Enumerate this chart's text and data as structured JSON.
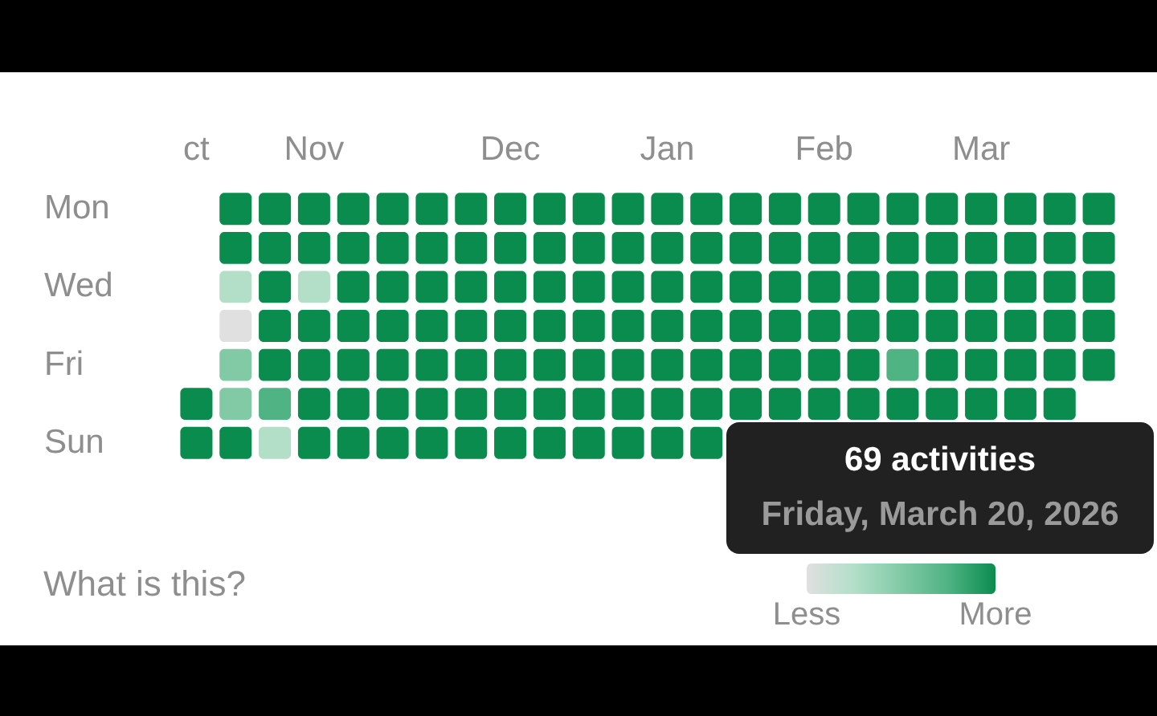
{
  "chart_data": {
    "type": "heatmap",
    "categories": [
      "ct",
      null,
      null,
      "Nov",
      null,
      null,
      null,
      null,
      "Dec",
      null,
      null,
      null,
      "Jan",
      null,
      null,
      null,
      "Feb",
      null,
      null,
      null,
      "Mar",
      null,
      null,
      null
    ],
    "y_categories": [
      "Mon",
      null,
      "Wed",
      null,
      "Fri",
      null,
      "Sun"
    ],
    "cells": [
      [
        null,
        4,
        4,
        4,
        4,
        4,
        4,
        4,
        4,
        4,
        4,
        4,
        4,
        4,
        4,
        4,
        4,
        4,
        4,
        4,
        4,
        4,
        4,
        4
      ],
      [
        null,
        4,
        4,
        4,
        4,
        4,
        4,
        4,
        4,
        4,
        4,
        4,
        4,
        4,
        4,
        4,
        4,
        4,
        4,
        4,
        4,
        4,
        4,
        4
      ],
      [
        null,
        1,
        4,
        1,
        4,
        4,
        4,
        4,
        4,
        4,
        4,
        4,
        4,
        4,
        4,
        4,
        4,
        4,
        4,
        4,
        4,
        4,
        4,
        4
      ],
      [
        null,
        0,
        4,
        4,
        4,
        4,
        4,
        4,
        4,
        4,
        4,
        4,
        4,
        4,
        4,
        4,
        4,
        4,
        4,
        4,
        4,
        4,
        4,
        4
      ],
      [
        null,
        2,
        4,
        4,
        4,
        4,
        4,
        4,
        4,
        4,
        4,
        4,
        4,
        4,
        4,
        4,
        4,
        4,
        3,
        4,
        4,
        4,
        4,
        4
      ],
      [
        4,
        2,
        3,
        4,
        4,
        4,
        4,
        4,
        4,
        4,
        4,
        4,
        4,
        4,
        4,
        4,
        4,
        4,
        4,
        4,
        4,
        4,
        4,
        null
      ],
      [
        4,
        4,
        1,
        4,
        4,
        4,
        4,
        4,
        4,
        4,
        4,
        4,
        4,
        4,
        null,
        null,
        null,
        null,
        null,
        null,
        null,
        null,
        null,
        null
      ]
    ],
    "clim": [
      0,
      4
    ],
    "cticks": [
      {
        "value": 0,
        "label": "Less"
      },
      {
        "value": 4,
        "label": "More"
      }
    ],
    "colors": [
      "#e0e0e0",
      "#b3dfc9",
      "#82caa6",
      "#4fb383",
      "#0b8c4f"
    ],
    "annotations": [
      "What is this?",
      "69 activities",
      "Friday, March 20, 2026"
    ]
  }
}
